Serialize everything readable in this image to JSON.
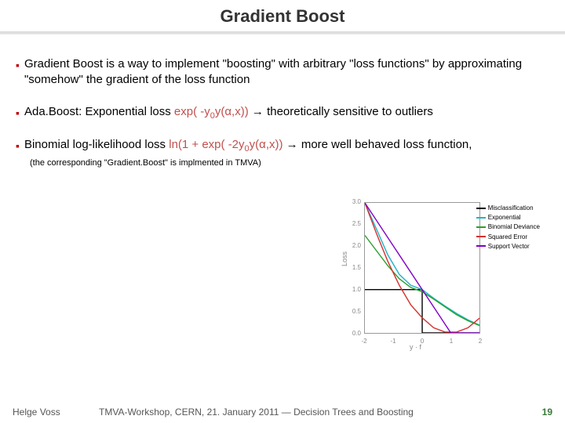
{
  "title": "Gradient Boost",
  "bullets": {
    "b1": "Gradient Boost is a way to implement \"boosting\" with arbitrary \"loss functions\" by approximating \"somehow\" the gradient of the loss function",
    "b2_pre": "Ada.Boost: Exponential loss ",
    "b2_exp_a": "exp( -y",
    "b2_exp_sub": "0",
    "b2_exp_b": "y(α,x))",
    "b2_post": " theoretically sensitive to outliers",
    "b3_pre": "Binomial log-likelihood loss ",
    "b3_exp_a": "ln(1 + exp( -2y",
    "b3_exp_sub": "0",
    "b3_exp_b": "y(α,x))",
    "b3_post": " more well behaved loss function,",
    "note": "(the corresponding \"Gradient.Boost\" is implmented in TMVA)"
  },
  "chart": {
    "type": "line",
    "xlim": [
      -2,
      2
    ],
    "ylim": [
      0,
      3
    ],
    "xticks": [
      -2,
      -1,
      0,
      1,
      2
    ],
    "yticks": [
      0.0,
      0.5,
      1.0,
      1.5,
      2.0,
      2.5,
      3.0
    ],
    "xlabel": "y · f",
    "ylabel": "Loss",
    "background_color": "#ffffff",
    "frame_color": "#999999",
    "series": [
      {
        "name": "Misclassification",
        "color": "#000000",
        "x": [
          -2,
          -0.001,
          0,
          0.001,
          2
        ],
        "y": [
          1,
          1,
          1,
          0,
          0
        ]
      },
      {
        "name": "Exponential",
        "color": "#1eb4c8",
        "x": [
          -2,
          -1.6,
          -1.2,
          -0.8,
          -0.4,
          0,
          0.4,
          0.8,
          1.2,
          1.6,
          2
        ],
        "y": [
          3.0,
          2.4,
          1.8,
          1.35,
          1.1,
          1.0,
          0.8,
          0.62,
          0.45,
          0.3,
          0.18
        ]
      },
      {
        "name": "Binomial Deviance",
        "color": "#2aa02a",
        "x": [
          -2,
          -1.6,
          -1.2,
          -0.8,
          -0.4,
          0,
          0.4,
          0.8,
          1.2,
          1.6,
          2
        ],
        "y": [
          2.25,
          1.9,
          1.55,
          1.25,
          1.05,
          0.95,
          0.78,
          0.6,
          0.42,
          0.28,
          0.17
        ]
      },
      {
        "name": "Squared Error",
        "color": "#d63030",
        "x": [
          -2,
          -1.6,
          -1.2,
          -0.8,
          -0.4,
          0,
          0.4,
          0.8,
          1.2,
          1.6,
          2
        ],
        "y": [
          3.0,
          2.3,
          1.65,
          1.1,
          0.65,
          0.35,
          0.12,
          0.02,
          0.02,
          0.12,
          0.34
        ]
      },
      {
        "name": "Support Vector",
        "color": "#8000c8",
        "x": [
          -2,
          -1.0,
          1.0,
          2
        ],
        "y": [
          3.0,
          2.0,
          0.0,
          0.0
        ]
      }
    ]
  },
  "footer": {
    "author": "Helge Voss",
    "mid": "TMVA-Workshop, CERN,  21. January 2011  ― Decision Trees and Boosting",
    "page": "19"
  },
  "colors": {
    "bullet_mark": "#c00000",
    "red_text": "#c0504d",
    "page_number": "#3a7a3a"
  }
}
